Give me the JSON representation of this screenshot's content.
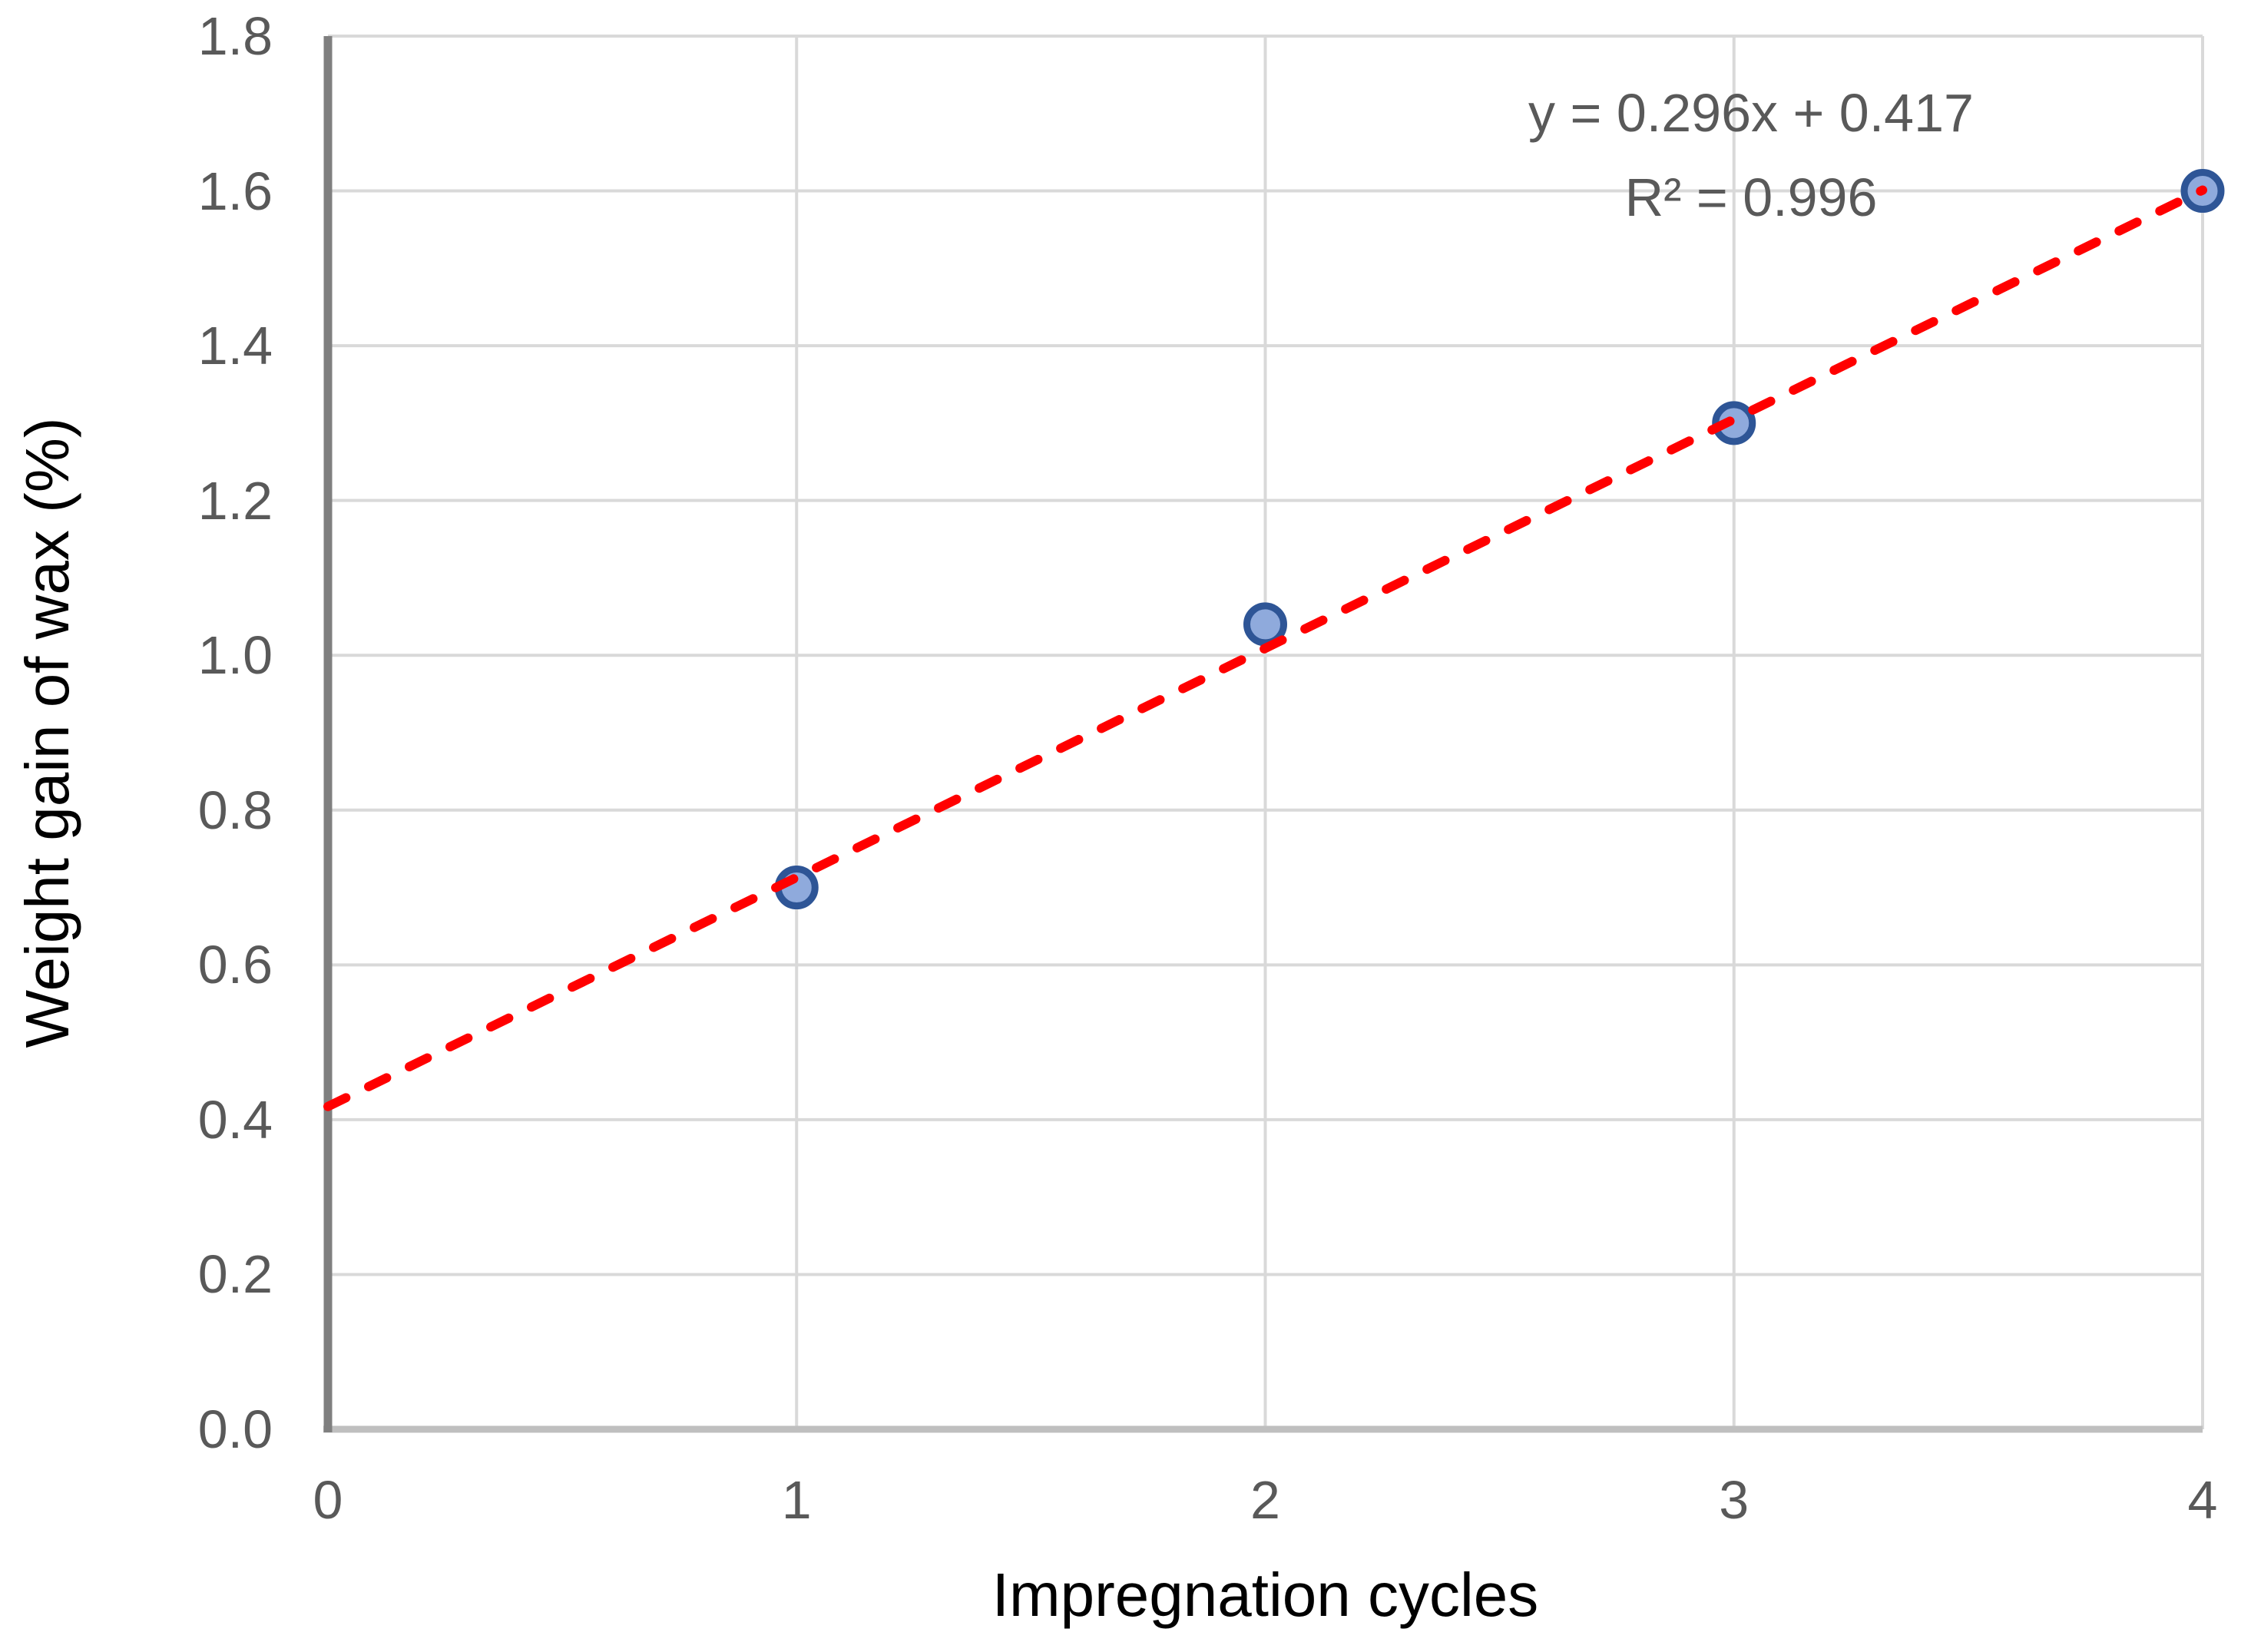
{
  "chart_data": {
    "type": "scatter",
    "title": "",
    "xlabel": "Impregnation cycles",
    "ylabel": "Weight gain of wax (%)",
    "series": [
      {
        "name": "Weight gain of wax",
        "x": [
          1,
          2,
          3,
          4
        ],
        "y": [
          0.7,
          1.04,
          1.3,
          1.6
        ]
      }
    ],
    "xlim": [
      0,
      4
    ],
    "ylim": [
      0.0,
      1.8
    ],
    "x_ticks": [
      0,
      1,
      2,
      3,
      4
    ],
    "x_tick_labels": [
      "0",
      "1",
      "2",
      "3",
      "4"
    ],
    "y_ticks": [
      0.0,
      0.2,
      0.4,
      0.6,
      0.8,
      1.0,
      1.2,
      1.4,
      1.6,
      1.8
    ],
    "y_tick_labels": [
      "0.0",
      "0.2",
      "0.4",
      "0.6",
      "0.8",
      "1.0",
      "1.2",
      "1.4",
      "1.6",
      "1.8"
    ],
    "grid": true,
    "legend": false,
    "trendline": {
      "slope": 0.296,
      "intercept": 0.417,
      "x_start": 0,
      "x_end": 4,
      "equation_label": "y = 0.296x + 0.417",
      "r_squared_label": "R² = 0.996",
      "style": "dashed"
    },
    "colors": {
      "marker_fill": "#8FAADC",
      "marker_border": "#2E5596",
      "trendline": "#FF0000",
      "gridline": "#D9D9D9",
      "x_axis_line": "#BFBFBF",
      "y_axis_line": "#7F7F7F",
      "tick_text": "#595959",
      "equation_text": "#595959",
      "axis_title_text": "#000000"
    }
  }
}
